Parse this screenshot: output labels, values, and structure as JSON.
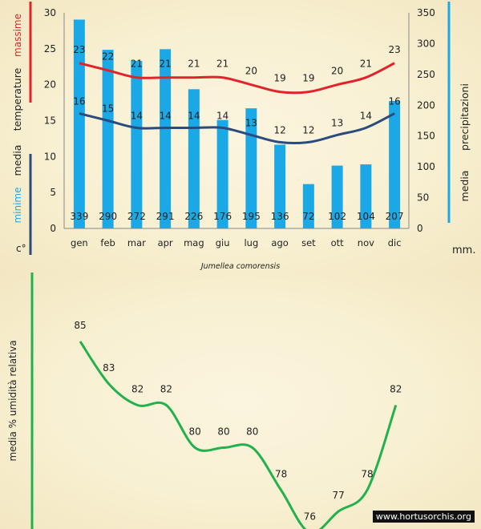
{
  "chart_data": [
    {
      "type": "bar+line",
      "title": "Jumellea comorensis",
      "categories": [
        "gen",
        "feb",
        "mar",
        "apr",
        "mag",
        "giu",
        "lug",
        "ago",
        "set",
        "ott",
        "nov",
        "dic"
      ],
      "bars": {
        "name": "media precipitazioni",
        "unit": "mm.",
        "values": [
          339,
          290,
          272,
          291,
          226,
          176,
          195,
          136,
          72,
          102,
          104,
          207
        ],
        "color": "#1aa9e6",
        "ylim": [
          0,
          350
        ],
        "ticks": [
          0,
          50,
          100,
          150,
          200,
          250,
          300,
          350
        ]
      },
      "series": [
        {
          "name": "massime",
          "values": [
            23,
            22,
            21,
            21,
            21,
            21,
            20,
            19,
            19,
            20,
            21,
            23
          ],
          "color": "#e0242b"
        },
        {
          "name": "minime",
          "values": [
            16,
            15,
            14,
            14,
            14,
            14,
            13,
            12,
            12,
            13,
            14,
            16
          ],
          "color": "#2a4b7c"
        }
      ],
      "temp_axis": {
        "ylim": [
          0,
          30
        ],
        "ticks": [
          0,
          5,
          10,
          15,
          20,
          25,
          30
        ],
        "unit": "c°"
      },
      "left_axis_labels": {
        "max": "massime",
        "media": "media",
        "temperature": "temperature",
        "min": "minime"
      },
      "right_axis_labels": {
        "media": "media",
        "precip": "precipitazioni"
      }
    },
    {
      "type": "line",
      "ylabel": "media % umidità relativa",
      "values": [
        85,
        83,
        82,
        82,
        80,
        80,
        80,
        78,
        76,
        77,
        78,
        82
      ],
      "color": "#22b14c"
    }
  ],
  "credit": "www.hortusorchis.org"
}
